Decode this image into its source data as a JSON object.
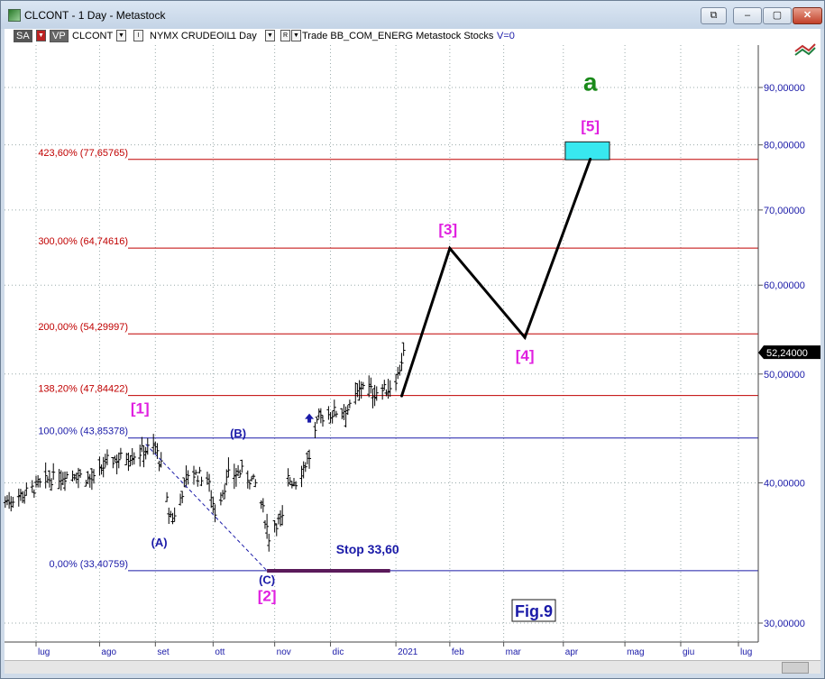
{
  "window": {
    "title": "CLCONT - 1 Day - Metastock",
    "buttons": [
      "⧉",
      "–",
      "▢",
      "✕"
    ]
  },
  "toolbar": {
    "sa": "SA",
    "vp": "VP",
    "symbol": "CLCONT",
    "i_box": "I",
    "instrument": "NYMX CRUDEOIL",
    "period": "1 Day",
    "r_box": "R",
    "rest": "Trade  BB_COM_ENERG  Metastock  Stocks",
    "v": "V=0"
  },
  "colors": {
    "fib_red": "#c00000",
    "fib_blue": "#1a1aa8",
    "wave_magenta": "#e020e0",
    "wave_green": "#1a8a1a",
    "target_box": "#38e8f0",
    "stop_line": "#5a1a5a",
    "axis_blue": "#1a1aa8"
  },
  "chart_data": {
    "type": "line",
    "instrument": "CLCONT",
    "timeframe": "1 Day",
    "yscale": "log",
    "ylim": [
      29,
      100
    ],
    "y_ticks": [
      {
        "v": 30,
        "label": "30,00000"
      },
      {
        "v": 40,
        "label": "40,00000"
      },
      {
        "v": 50,
        "label": "50,00000"
      },
      {
        "v": 60,
        "label": "60,00000"
      },
      {
        "v": 70,
        "label": "70,00000"
      },
      {
        "v": 80,
        "label": "80,00000"
      },
      {
        "v": 90,
        "label": "90,00000"
      }
    ],
    "x_ticks": [
      {
        "label": "lug",
        "d": "2020-07-01"
      },
      {
        "label": "ago",
        "d": "2020-08-03"
      },
      {
        "label": "set",
        "d": "2020-09-01"
      },
      {
        "label": "ott",
        "d": "2020-10-01"
      },
      {
        "label": "nov",
        "d": "2020-11-02"
      },
      {
        "label": "dic",
        "d": "2020-12-01"
      },
      {
        "label": "2021",
        "d": "2021-01-04"
      },
      {
        "label": "feb",
        "d": "2021-02-01"
      },
      {
        "label": "mar",
        "d": "2021-03-01"
      },
      {
        "label": "apr",
        "d": "2021-04-01"
      },
      {
        "label": "mag",
        "d": "2021-05-03"
      },
      {
        "label": "giu",
        "d": "2021-06-01"
      },
      {
        "label": "lug",
        "d": "2021-07-01"
      }
    ],
    "last_price": {
      "value": 52.24,
      "label": "52,24000"
    },
    "fib_levels": [
      {
        "label": "423,60% (77,65765)",
        "value": 77.65765,
        "color": "red"
      },
      {
        "label": "300,00% (64,74616)",
        "value": 64.74616,
        "color": "red"
      },
      {
        "label": "200,00% (54,29997)",
        "value": 54.29997,
        "color": "red"
      },
      {
        "label": "138,20% (47,84422)",
        "value": 47.84422,
        "color": "red"
      },
      {
        "label": "100,00% (43,85378)",
        "value": 43.85378,
        "color": "blue"
      },
      {
        "label": "0,00% (33,40759)",
        "value": 33.40759,
        "color": "blue"
      }
    ],
    "price_anchors": [
      [
        "2020-06-15",
        38.5
      ],
      [
        "2020-06-26",
        39.2
      ],
      [
        "2020-07-08",
        40.3
      ],
      [
        "2020-07-20",
        40.8
      ],
      [
        "2020-07-31",
        40.2
      ],
      [
        "2020-08-07",
        41.8
      ],
      [
        "2020-08-14",
        42.1
      ],
      [
        "2020-08-21",
        42.4
      ],
      [
        "2020-08-28",
        42.9
      ],
      [
        "2020-09-01",
        43.0
      ],
      [
        "2020-09-04",
        41.4
      ],
      [
        "2020-09-08",
        37.5
      ],
      [
        "2020-09-11",
        37.3
      ],
      [
        "2020-09-18",
        40.8
      ],
      [
        "2020-09-28",
        40.4
      ],
      [
        "2020-10-02",
        37.7
      ],
      [
        "2020-10-09",
        40.6
      ],
      [
        "2020-10-16",
        40.9
      ],
      [
        "2020-10-23",
        39.9
      ],
      [
        "2020-10-28",
        37.2
      ],
      [
        "2020-10-30",
        35.8
      ],
      [
        "2020-11-02",
        36.8
      ],
      [
        "2020-11-06",
        37.1
      ],
      [
        "2020-11-09",
        40.3
      ],
      [
        "2020-11-13",
        40.1
      ],
      [
        "2020-11-20",
        42.2
      ],
      [
        "2020-11-25",
        45.7
      ],
      [
        "2020-12-04",
        46.3
      ],
      [
        "2020-12-11",
        46.6
      ],
      [
        "2020-12-18",
        49.1
      ],
      [
        "2020-12-23",
        48.1
      ],
      [
        "2020-12-31",
        48.5
      ],
      [
        "2021-01-05",
        49.9
      ],
      [
        "2021-01-08",
        52.2
      ]
    ],
    "wave_path": [
      {
        "x": "2021-01-07",
        "y": 47.8
      },
      {
        "x": "2021-02-01",
        "y": 64.7
      },
      {
        "x": "2021-03-12",
        "y": 53.9
      },
      {
        "x": "2021-04-15",
        "y": 77.7
      }
    ],
    "dashed_line": [
      {
        "x": "2020-08-27",
        "y": 43.3
      },
      {
        "x": "2020-10-29",
        "y": 33.4
      }
    ],
    "stop_line": {
      "x1": "2020-10-29",
      "x2": "2021-01-01",
      "y": 33.4,
      "label": "Stop 33,60"
    },
    "target_box": {
      "x1": "2021-04-02",
      "x2": "2021-04-25",
      "y1": 77.6,
      "y2": 80.5
    },
    "buy_arrow": {
      "x": "2020-11-20",
      "y": 45.6
    },
    "labels": [
      {
        "text": "[1]",
        "x": "2020-08-24",
        "y": 46.1,
        "color": "magenta",
        "size": 17
      },
      {
        "text": "(A)",
        "x": "2020-09-03",
        "y": 35.1,
        "color": "blue",
        "size": 13
      },
      {
        "text": "(B)",
        "x": "2020-10-14",
        "y": 43.9,
        "color": "blue",
        "size": 13
      },
      {
        "text": "(C)",
        "x": "2020-10-29",
        "y": 32.5,
        "color": "blue",
        "size": 13
      },
      {
        "text": "[2]",
        "x": "2020-10-29",
        "y": 31.4,
        "color": "magenta",
        "size": 17
      },
      {
        "text": "[3]",
        "x": "2021-01-31",
        "y": 66.6,
        "color": "magenta",
        "size": 17
      },
      {
        "text": "[4]",
        "x": "2021-03-12",
        "y": 51.4,
        "color": "magenta",
        "size": 17
      },
      {
        "text": "[5]",
        "x": "2021-04-15",
        "y": 82.3,
        "color": "magenta",
        "size": 17
      },
      {
        "text": "a",
        "x": "2021-04-15",
        "y": 89.4,
        "color": "green",
        "size": 28
      }
    ],
    "figure_label": "Fig.9"
  }
}
